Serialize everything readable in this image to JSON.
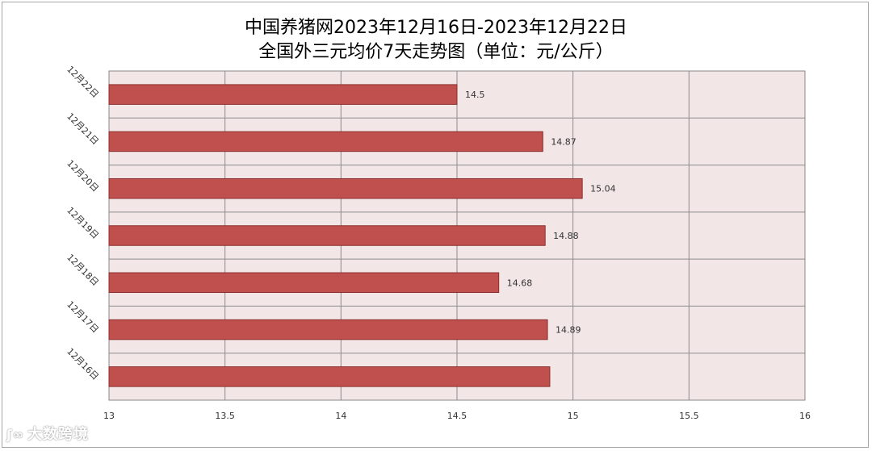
{
  "chart_data": {
    "type": "bar",
    "orientation": "horizontal",
    "title": "中国养猪网2023年12月16日-2023年12月22日",
    "subtitle": "全国外三元均价7天走势图（单位：元/公斤）",
    "categories": [
      "12月22日",
      "12月21日",
      "12月20日",
      "12月19日",
      "12月18日",
      "12月17日",
      "12月16日"
    ],
    "values": [
      14.5,
      14.87,
      15.04,
      14.88,
      14.68,
      14.89,
      14.9
    ],
    "value_labels": [
      "14.5",
      "14.87",
      "15.04",
      "14.88",
      "14.68",
      "14.89",
      ""
    ],
    "x_ticks": [
      "13",
      "13.5",
      "14",
      "14.5",
      "15",
      "15.5",
      "16"
    ],
    "xlim": [
      13,
      16
    ],
    "grid": true,
    "bar_color": "#c0504d",
    "bar_edge_color": "#8b2e2c",
    "plot_background": "#f2e6e6"
  },
  "watermark": {
    "logo": "ʃ∞",
    "text": "大数跨境"
  }
}
